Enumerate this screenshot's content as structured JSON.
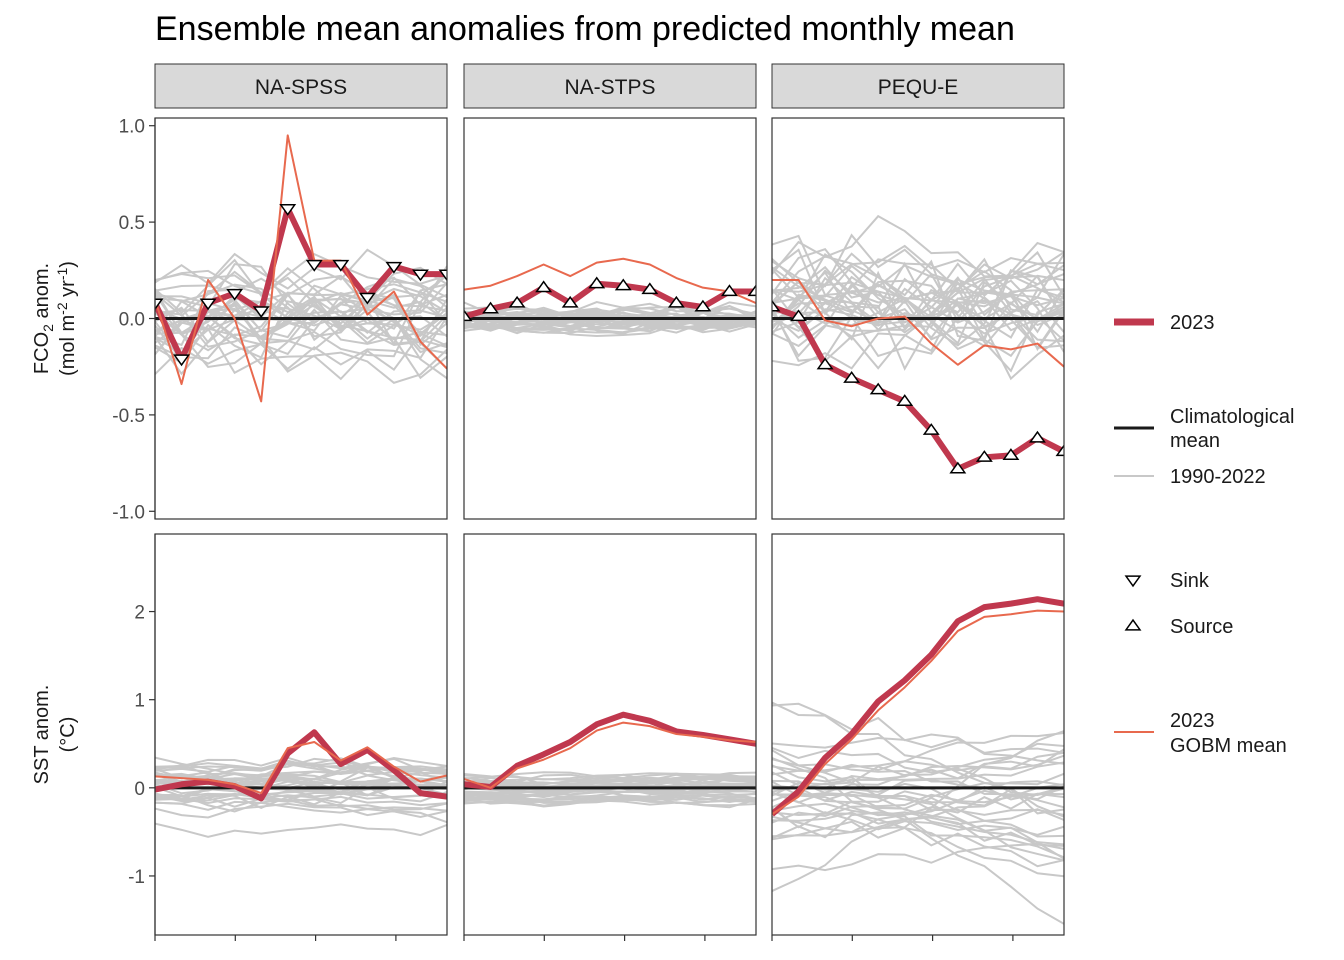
{
  "title": "Ensemble mean anomalies from predicted monthly mean",
  "chart_data": {
    "type": "line",
    "title": "Ensemble mean anomalies from predicted monthly mean",
    "facet_columns": [
      "NA-SPSS",
      "NA-STPS",
      "PEQU-E"
    ],
    "x": [
      1,
      2,
      3,
      4,
      5,
      6,
      7,
      8,
      9,
      10,
      11,
      12
    ],
    "rows": [
      {
        "id": "fco2",
        "ylabel_line1": "FCO",
        "ylabel_sub": "2",
        "ylabel_line1_rest": " anom.",
        "ylabel_line2_a": "(mol m",
        "ylabel_sup1": "-2",
        "ylabel_line2_b": " yr",
        "ylabel_sup2": "-1",
        "ylabel_line2_c": ")",
        "ylim": [
          -1.04,
          1.04
        ],
        "ticks": [
          -1.0,
          -0.5,
          0.0,
          0.5,
          1.0
        ],
        "tick_labels": [
          "-1.0",
          "-0.5",
          "0.0",
          "0.5",
          "1.0"
        ]
      },
      {
        "id": "sst",
        "ylabel_line1": "SST anom.",
        "ylabel_line2": "(°C)",
        "ylim": [
          -1.67,
          2.88
        ],
        "ticks": [
          -1,
          0,
          1,
          2
        ],
        "tick_labels": [
          "-1",
          "0",
          "1",
          "2"
        ]
      }
    ],
    "panels": [
      {
        "row": "fco2",
        "column": "NA-SPSS",
        "series_2023": [
          0.08,
          -0.21,
          0.08,
          0.13,
          0.04,
          0.57,
          0.28,
          0.28,
          0.11,
          0.27,
          0.23,
          0.23
        ],
        "markers": [
          "sink",
          "sink",
          "sink",
          "sink",
          "sink",
          "sink",
          "sink",
          "sink",
          "sink",
          "sink",
          "sink",
          "sink"
        ],
        "gobm_mean": [
          0.1,
          -0.34,
          0.2,
          0.0,
          -0.43,
          0.95,
          0.3,
          0.3,
          0.02,
          0.14,
          -0.12,
          -0.26
        ]
      },
      {
        "row": "fco2",
        "column": "NA-STPS",
        "series_2023": [
          0.01,
          0.05,
          0.08,
          0.16,
          0.08,
          0.18,
          0.17,
          0.15,
          0.08,
          0.06,
          0.14,
          0.14
        ],
        "markers": [
          "source",
          "source",
          "source",
          "source",
          "source",
          "source",
          "source",
          "source",
          "source",
          "source",
          "source",
          "source"
        ],
        "gobm_mean": [
          0.15,
          0.17,
          0.22,
          0.28,
          0.22,
          0.29,
          0.31,
          0.28,
          0.21,
          0.16,
          0.14,
          0.08
        ]
      },
      {
        "row": "fco2",
        "column": "PEQU-E",
        "series_2023": [
          0.06,
          0.01,
          -0.24,
          -0.31,
          -0.37,
          -0.43,
          -0.58,
          -0.78,
          -0.72,
          -0.71,
          -0.62,
          -0.69
        ],
        "markers": [
          "source",
          "source",
          "source",
          "source",
          "source",
          "source",
          "source",
          "source",
          "source",
          "source",
          "source",
          "source"
        ],
        "gobm_mean": [
          0.2,
          0.2,
          -0.01,
          -0.04,
          0.0,
          0.01,
          -0.13,
          -0.24,
          -0.14,
          -0.16,
          -0.13,
          -0.25
        ]
      },
      {
        "row": "sst",
        "column": "NA-SPSS",
        "series_2023": [
          -0.02,
          0.04,
          0.07,
          0.02,
          -0.12,
          0.39,
          0.63,
          0.27,
          0.43,
          0.2,
          -0.06,
          -0.1
        ],
        "gobm_mean": [
          0.13,
          0.11,
          0.09,
          0.04,
          -0.06,
          0.45,
          0.52,
          0.31,
          0.46,
          0.24,
          0.07,
          0.14
        ]
      },
      {
        "row": "sst",
        "column": "NA-STPS",
        "series_2023": [
          0.04,
          0.01,
          0.25,
          0.38,
          0.52,
          0.72,
          0.83,
          0.76,
          0.64,
          0.6,
          0.55,
          0.5
        ],
        "gobm_mean": [
          0.1,
          0.0,
          0.22,
          0.32,
          0.45,
          0.65,
          0.74,
          0.7,
          0.61,
          0.58,
          0.54,
          0.52
        ]
      },
      {
        "row": "sst",
        "column": "PEQU-E",
        "series_2023": [
          -0.3,
          -0.04,
          0.34,
          0.61,
          0.98,
          1.22,
          1.51,
          1.89,
          2.05,
          2.09,
          2.14,
          2.09
        ],
        "gobm_mean": [
          -0.3,
          -0.1,
          0.27,
          0.55,
          0.88,
          1.14,
          1.44,
          1.78,
          1.94,
          1.97,
          2.01,
          2.0
        ]
      }
    ],
    "climatological_mean": 0,
    "legend": {
      "position": "right",
      "line_items": [
        {
          "label": "2023",
          "color": "#c0384e"
        },
        {
          "label_line1": "Climatological",
          "label_line2": "mean",
          "color": "#1a1a1a"
        },
        {
          "label": "1990-2022",
          "color": "#c8c8c8"
        }
      ],
      "shape_items": [
        {
          "label": "Sink",
          "shape": "triangle-down"
        },
        {
          "label": "Source",
          "shape": "triangle-up"
        }
      ],
      "gobm_item": {
        "label_line1": "2023",
        "label_line2": "GOBM mean",
        "color": "#e8694e"
      }
    },
    "colors": {
      "series_2023": "#c0384e",
      "gobm_mean": "#e8694e",
      "history": "#c8c8c8",
      "climatology": "#1a1a1a",
      "strip_fill": "#d9d9d9"
    }
  }
}
